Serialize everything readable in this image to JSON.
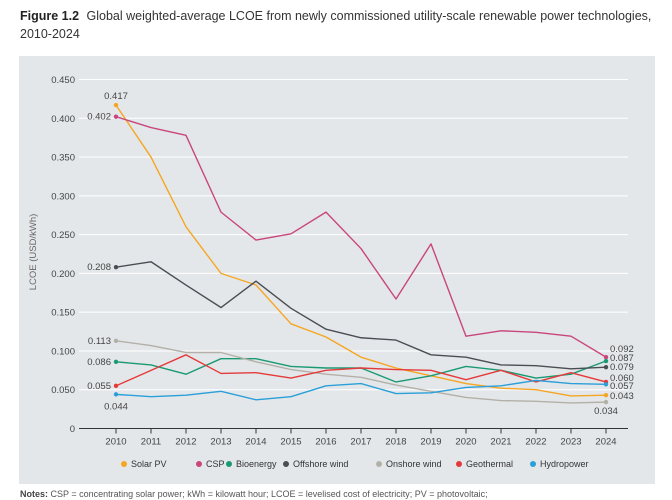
{
  "caption": {
    "figure_label": "Figure 1.2",
    "text": "Global weighted-average LCOE from newly commissioned utility-scale renewable power technologies, 2010-2024"
  },
  "notes": {
    "label": "Notes:",
    "text": "CSP = concentrating solar power; kWh = kilowatt hour; LCOE = levelised cost of electricity; PV = photovoltaic;"
  },
  "chart_data": {
    "type": "line",
    "title": "",
    "xlabel": "",
    "ylabel": "LCOE (USD/kWh)",
    "ylim": [
      0,
      0.45
    ],
    "yticks": [
      "0",
      "0.050",
      "0.100",
      "0.150",
      "0.200",
      "0.250",
      "0.300",
      "0.350",
      "0.400",
      "0.450"
    ],
    "ytick_values": [
      0,
      0.05,
      0.1,
      0.15,
      0.2,
      0.25,
      0.3,
      0.35,
      0.4,
      0.45
    ],
    "grid": true,
    "legend_position": "bottom",
    "categories": [
      "2010",
      "2011",
      "2012",
      "2013",
      "2014",
      "2015",
      "2016",
      "2017",
      "2018",
      "2019",
      "2020",
      "2021",
      "2022",
      "2023",
      "2024"
    ],
    "series": [
      {
        "name": "Solar PV",
        "color": "#f5a623",
        "values": [
          0.417,
          0.35,
          0.26,
          0.2,
          0.185,
          0.135,
          0.118,
          0.092,
          0.078,
          0.068,
          0.058,
          0.052,
          0.05,
          0.042,
          0.043
        ],
        "start_label": "0.417",
        "end_label": "0.043"
      },
      {
        "name": "CSP",
        "color": "#c8467c",
        "values": [
          0.402,
          0.388,
          0.378,
          0.279,
          0.243,
          0.251,
          0.279,
          0.232,
          0.167,
          0.238,
          0.119,
          0.126,
          0.124,
          0.119,
          0.092
        ],
        "start_label": "0.402",
        "end_label": "0.092"
      },
      {
        "name": "Bioenergy",
        "color": "#1a9a72",
        "values": [
          0.086,
          0.082,
          0.07,
          0.09,
          0.09,
          0.08,
          0.078,
          0.078,
          0.06,
          0.068,
          0.08,
          0.075,
          0.065,
          0.07,
          0.087
        ],
        "start_label": "0.086",
        "end_label": "0.087"
      },
      {
        "name": "Offshore wind",
        "color": "#4a4e53",
        "values": [
          0.208,
          0.215,
          0.185,
          0.156,
          0.19,
          0.155,
          0.128,
          0.117,
          0.114,
          0.095,
          0.092,
          0.082,
          0.081,
          0.077,
          0.079
        ],
        "start_label": "0.208",
        "end_label": "0.079"
      },
      {
        "name": "Onshore wind",
        "color": "#b3b0a8",
        "values": [
          0.113,
          0.107,
          0.098,
          0.098,
          0.086,
          0.076,
          0.07,
          0.066,
          0.056,
          0.048,
          0.04,
          0.036,
          0.035,
          0.033,
          0.034
        ],
        "start_label": "0.113",
        "end_label": "0.034"
      },
      {
        "name": "Geothermal",
        "color": "#e53a3a",
        "values": [
          0.055,
          0.075,
          0.095,
          0.071,
          0.072,
          0.065,
          0.075,
          0.078,
          0.076,
          0.075,
          0.063,
          0.075,
          0.06,
          0.072,
          0.06
        ],
        "start_label": "0.055",
        "end_label": "0.060"
      },
      {
        "name": "Hydropower",
        "color": "#2a9fd8",
        "values": [
          0.044,
          0.041,
          0.043,
          0.048,
          0.037,
          0.041,
          0.055,
          0.058,
          0.045,
          0.046,
          0.053,
          0.055,
          0.062,
          0.058,
          0.057
        ],
        "start_label": "0.044",
        "end_label": "0.057"
      }
    ]
  }
}
